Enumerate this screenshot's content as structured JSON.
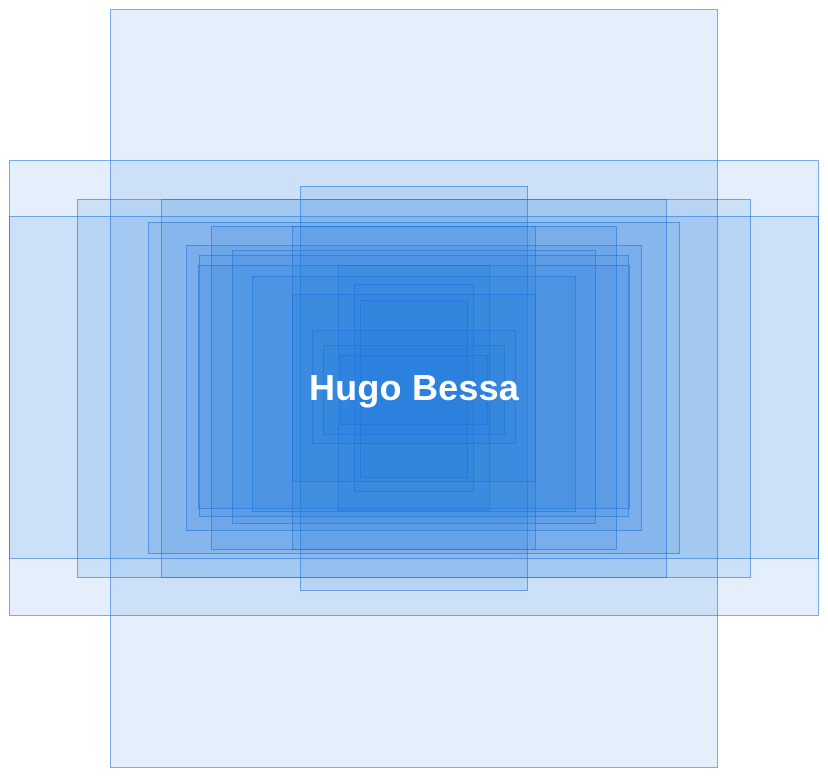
{
  "name": "Hugo Bessa",
  "layer_fill": "#237de1",
  "layer_border": "#1e73dc",
  "text_color": "#ffffff"
}
